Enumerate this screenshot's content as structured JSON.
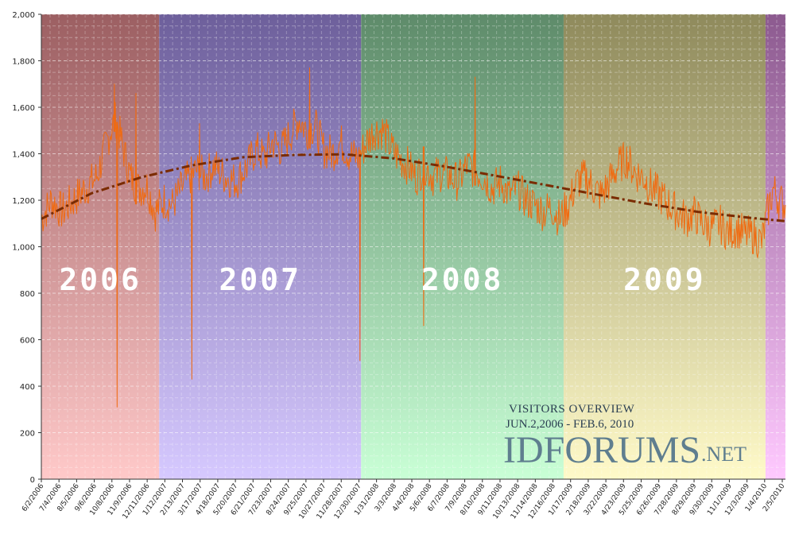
{
  "chart_data": {
    "type": "line",
    "title": "VISITORS OVERVIEW",
    "subtitle": "JUN.2,2006 - FEB.6, 2010",
    "brand_main": "IDFORUMS",
    "brand_tld": ".NET",
    "ylim": [
      0,
      2000
    ],
    "yticks": [
      "0",
      "200",
      "400",
      "600",
      "800",
      "1,000",
      "1,200",
      "1,400",
      "1,600",
      "1,800",
      "2,000"
    ],
    "ytick_values": [
      0,
      200,
      400,
      600,
      800,
      1000,
      1200,
      1400,
      1600,
      1800,
      2000
    ],
    "x_start": "2006-06-02",
    "x_end": "2010-02-06",
    "x_tick_labels": [
      "6/2/2006",
      "7/4/2006",
      "8/5/2006",
      "9/6/2006",
      "10/8/2006",
      "11/9/2006",
      "12/11/2006",
      "1/12/2007",
      "2/13/2007",
      "3/17/2007",
      "4/18/2007",
      "5/20/2007",
      "6/21/2007",
      "7/23/2007",
      "8/24/2007",
      "9/25/2007",
      "10/27/2007",
      "11/28/2007",
      "12/30/2007",
      "1/31/2008",
      "3/3/2008",
      "4/4/2008",
      "5/6/2008",
      "6/7/2008",
      "7/9/2008",
      "8/10/2008",
      "9/11/2008",
      "10/13/2008",
      "11/14/2008",
      "12/16/2008",
      "1/17/2009",
      "2/18/2009",
      "3/22/2009",
      "4/23/2009",
      "5/25/2009",
      "6/26/2009",
      "7/28/2009",
      "8/29/2009",
      "9/30/2009",
      "11/1/2009",
      "12/3/2009",
      "1/4/2010",
      "2/5/2010"
    ],
    "year_bands": [
      {
        "label": "2006",
        "start": "2006-06-02",
        "end": "2007-01-01",
        "top": "#9c5f62",
        "bottom": "#ffc9c9"
      },
      {
        "label": "2007",
        "start": "2007-01-01",
        "end": "2008-01-01",
        "top": "#6d5f9b",
        "bottom": "#d6c9ff"
      },
      {
        "label": "2008",
        "start": "2008-01-01",
        "end": "2009-01-01",
        "top": "#5e8b6a",
        "bottom": "#c9ffd6"
      },
      {
        "label": "2009",
        "start": "2009-01-01",
        "end": "2010-01-01",
        "top": "#8f8a5c",
        "bottom": "#fffac9"
      },
      {
        "label": "",
        "start": "2010-01-01",
        "end": "2010-02-06",
        "top": "#8c5a8f",
        "bottom": "#ffc9ff"
      }
    ],
    "series": [
      {
        "color": "#f06a10",
        "points": [
          [
            "2006-06-02",
            1120
          ],
          [
            "2006-06-20",
            1200
          ],
          [
            "2006-07-10",
            1150
          ],
          [
            "2006-07-30",
            1200
          ],
          [
            "2006-08-20",
            1250
          ],
          [
            "2006-09-10",
            1300
          ],
          [
            "2006-09-25",
            1420
          ],
          [
            "2006-10-05",
            1500
          ],
          [
            "2006-10-15",
            1550
          ],
          [
            "2006-10-25",
            1450
          ],
          [
            "2006-11-10",
            1300
          ],
          [
            "2006-11-25",
            1250
          ],
          [
            "2006-12-10",
            1260
          ],
          [
            "2006-12-25",
            1150
          ],
          [
            "2007-01-10",
            1200
          ],
          [
            "2007-01-25",
            1180
          ],
          [
            "2007-02-10",
            1250
          ],
          [
            "2007-02-25",
            1300
          ],
          [
            "2007-03-10",
            1330
          ],
          [
            "2007-03-25",
            1300
          ],
          [
            "2007-04-10",
            1350
          ],
          [
            "2007-05-01",
            1300
          ],
          [
            "2007-05-20",
            1280
          ],
          [
            "2007-06-10",
            1350
          ],
          [
            "2007-06-25",
            1420
          ],
          [
            "2007-07-10",
            1380
          ],
          [
            "2007-07-25",
            1450
          ],
          [
            "2007-08-10",
            1420
          ],
          [
            "2007-08-25",
            1480
          ],
          [
            "2007-09-10",
            1550
          ],
          [
            "2007-09-25",
            1500
          ],
          [
            "2007-10-10",
            1520
          ],
          [
            "2007-10-25",
            1420
          ],
          [
            "2007-11-10",
            1400
          ],
          [
            "2007-11-25",
            1450
          ],
          [
            "2007-12-10",
            1400
          ],
          [
            "2007-12-28",
            1380
          ],
          [
            "2008-01-10",
            1450
          ],
          [
            "2008-01-25",
            1500
          ],
          [
            "2008-02-10",
            1500
          ],
          [
            "2008-02-25",
            1420
          ],
          [
            "2008-03-10",
            1380
          ],
          [
            "2008-03-25",
            1350
          ],
          [
            "2008-04-10",
            1300
          ],
          [
            "2008-04-25",
            1350
          ],
          [
            "2008-05-10",
            1300
          ],
          [
            "2008-05-25",
            1320
          ],
          [
            "2008-06-10",
            1300
          ],
          [
            "2008-06-25",
            1280
          ],
          [
            "2008-07-10",
            1350
          ],
          [
            "2008-07-25",
            1330
          ],
          [
            "2008-08-10",
            1300
          ],
          [
            "2008-08-25",
            1250
          ],
          [
            "2008-09-10",
            1280
          ],
          [
            "2008-09-25",
            1220
          ],
          [
            "2008-10-10",
            1250
          ],
          [
            "2008-10-25",
            1200
          ],
          [
            "2008-11-10",
            1180
          ],
          [
            "2008-11-25",
            1150
          ],
          [
            "2008-12-10",
            1170
          ],
          [
            "2008-12-25",
            1120
          ],
          [
            "2009-01-10",
            1180
          ],
          [
            "2009-01-25",
            1280
          ],
          [
            "2009-02-10",
            1300
          ],
          [
            "2009-02-25",
            1250
          ],
          [
            "2009-03-10",
            1220
          ],
          [
            "2009-03-25",
            1280
          ],
          [
            "2009-04-10",
            1350
          ],
          [
            "2009-04-25",
            1380
          ],
          [
            "2009-05-10",
            1320
          ],
          [
            "2009-05-25",
            1300
          ],
          [
            "2009-06-10",
            1250
          ],
          [
            "2009-06-25",
            1220
          ],
          [
            "2009-07-10",
            1180
          ],
          [
            "2009-07-25",
            1150
          ],
          [
            "2009-08-10",
            1120
          ],
          [
            "2009-08-25",
            1140
          ],
          [
            "2009-09-10",
            1100
          ],
          [
            "2009-09-25",
            1080
          ],
          [
            "2009-10-10",
            1100
          ],
          [
            "2009-10-25",
            1060
          ],
          [
            "2009-11-10",
            1080
          ],
          [
            "2009-11-25",
            1050
          ],
          [
            "2009-12-10",
            1050
          ],
          [
            "2009-12-25",
            1020
          ],
          [
            "2010-01-05",
            1150
          ],
          [
            "2010-01-15",
            1250
          ],
          [
            "2010-01-25",
            1200
          ],
          [
            "2010-02-06",
            1180
          ]
        ],
        "spikes": [
          [
            "2006-10-12",
            1700
          ],
          [
            "2006-10-17",
            310
          ],
          [
            "2006-11-20",
            1660
          ],
          [
            "2007-03-01",
            430
          ],
          [
            "2007-03-15",
            1530
          ],
          [
            "2007-09-30",
            1770
          ],
          [
            "2007-12-30",
            510
          ],
          [
            "2008-04-23",
            660
          ],
          [
            "2008-07-25",
            1730
          ]
        ]
      },
      {
        "type": "trend",
        "color": "#7a2b00",
        "points": [
          [
            "2006-06-02",
            1120
          ],
          [
            "2006-09-01",
            1230
          ],
          [
            "2006-12-01",
            1300
          ],
          [
            "2007-03-01",
            1350
          ],
          [
            "2007-06-01",
            1385
          ],
          [
            "2007-09-01",
            1395
          ],
          [
            "2007-12-01",
            1398
          ],
          [
            "2008-03-01",
            1380
          ],
          [
            "2008-06-01",
            1345
          ],
          [
            "2008-09-01",
            1305
          ],
          [
            "2008-12-01",
            1265
          ],
          [
            "2009-03-01",
            1225
          ],
          [
            "2009-06-01",
            1185
          ],
          [
            "2009-09-01",
            1150
          ],
          [
            "2009-12-01",
            1125
          ],
          [
            "2010-02-06",
            1110
          ]
        ]
      }
    ]
  }
}
